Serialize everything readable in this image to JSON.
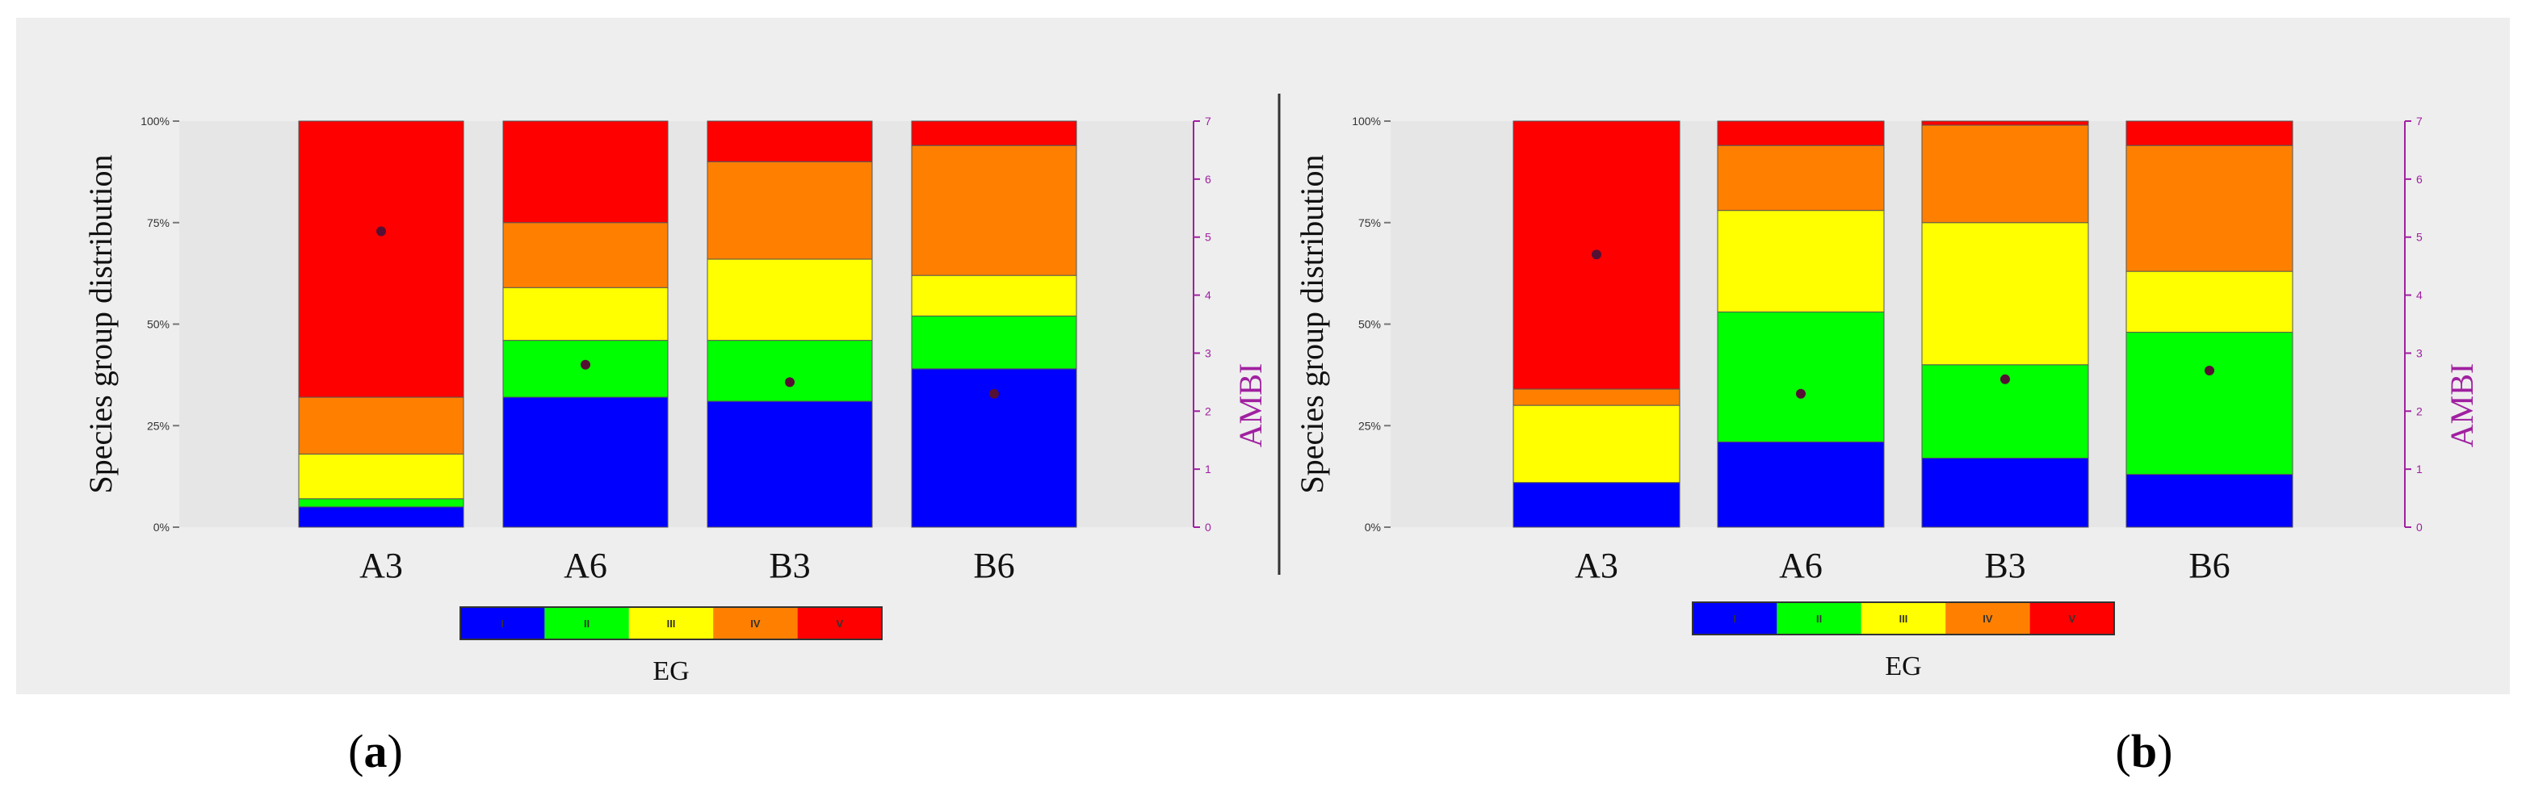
{
  "chart_data": [
    {
      "type": "bar",
      "stacked": true,
      "panel_label_prefix": "(",
      "panel_label": "a",
      "panel_label_suffix": ")",
      "categories": [
        "A3",
        "A6",
        "B3",
        "B6"
      ],
      "ylabel": "Species group distribution",
      "y_ticks": [
        "0%",
        "25%",
        "50%",
        "75%",
        "100%"
      ],
      "ylim": [
        0,
        100
      ],
      "y2label": "AMBI",
      "y2_ticks": [
        "0",
        "1",
        "2",
        "3",
        "4",
        "5",
        "6",
        "7"
      ],
      "y2lim": [
        0,
        7
      ],
      "legend_title": "EG",
      "legend_labels": [
        "I",
        "II",
        "III",
        "IV",
        "V"
      ],
      "series": [
        {
          "name": "I",
          "color": "#0000ff",
          "values": [
            5,
            32,
            31,
            39
          ]
        },
        {
          "name": "II",
          "color": "#00ff00",
          "values": [
            2,
            14,
            15,
            13
          ]
        },
        {
          "name": "III",
          "color": "#ffff00",
          "values": [
            11,
            13,
            20,
            10
          ]
        },
        {
          "name": "IV",
          "color": "#ff8000",
          "values": [
            14,
            16,
            24,
            32
          ]
        },
        {
          "name": "V",
          "color": "#ff0000",
          "values": [
            68,
            25,
            10,
            6
          ]
        }
      ],
      "ambi": [
        5.1,
        2.8,
        2.5,
        2.3
      ]
    },
    {
      "type": "bar",
      "stacked": true,
      "panel_label_prefix": "(",
      "panel_label": "b",
      "panel_label_suffix": ")",
      "categories": [
        "A3",
        "A6",
        "B3",
        "B6"
      ],
      "ylabel": "Species group distribution",
      "y_ticks": [
        "0%",
        "25%",
        "50%",
        "75%",
        "100%"
      ],
      "ylim": [
        0,
        100
      ],
      "y2label": "AMBI",
      "y2_ticks": [
        "0",
        "1",
        "2",
        "3",
        "4",
        "5",
        "6",
        "7"
      ],
      "y2lim": [
        0,
        7
      ],
      "legend_title": "EG",
      "legend_labels": [
        "I",
        "II",
        "III",
        "IV",
        "V"
      ],
      "series": [
        {
          "name": "I",
          "color": "#0000ff",
          "values": [
            11,
            21,
            17,
            13
          ]
        },
        {
          "name": "II",
          "color": "#00ff00",
          "values": [
            0,
            32,
            23,
            35
          ]
        },
        {
          "name": "III",
          "color": "#ffff00",
          "values": [
            19,
            25,
            35,
            15
          ]
        },
        {
          "name": "IV",
          "color": "#ff8000",
          "values": [
            4,
            16,
            24,
            31
          ]
        },
        {
          "name": "V",
          "color": "#ff0000",
          "values": [
            66,
            6,
            1,
            6
          ]
        }
      ],
      "ambi": [
        4.7,
        2.3,
        2.55,
        2.7
      ]
    }
  ],
  "colors": {
    "panel_background": "#eeeeee",
    "plot_background": "#e6e6e6",
    "ambi_axis": "#a020a0",
    "ambi_marker": "#551133"
  }
}
